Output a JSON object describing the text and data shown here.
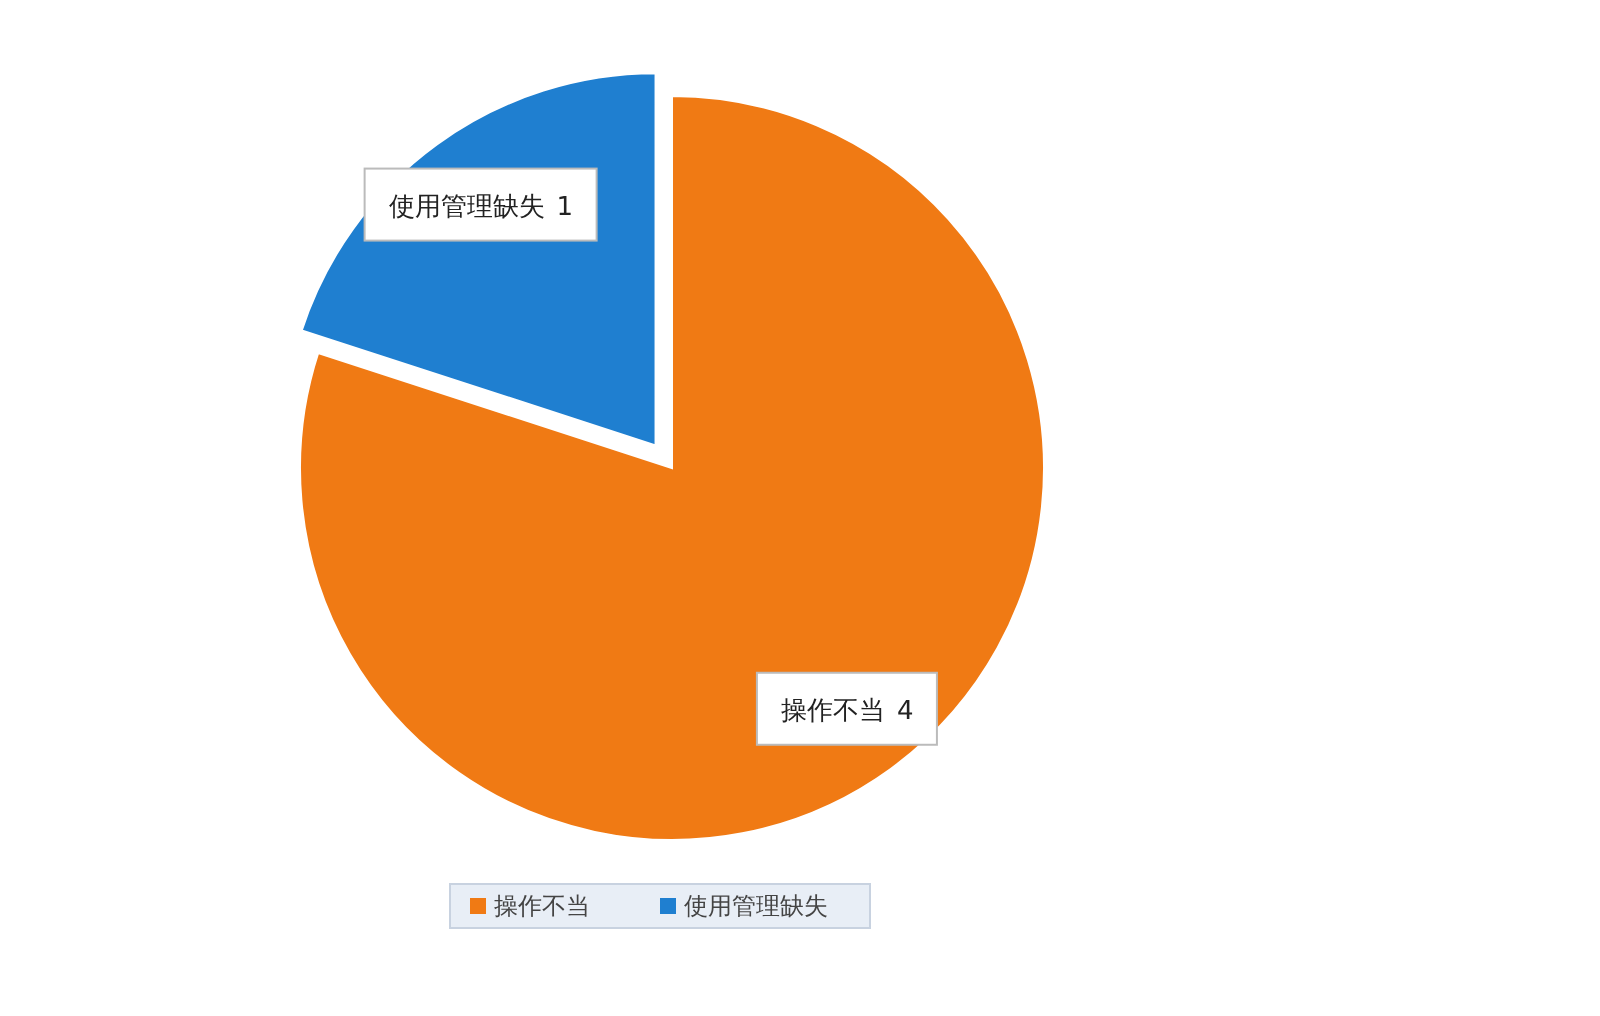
{
  "chart_data": {
    "type": "pie",
    "categories": [
      "操作不当",
      "使用管理缺失"
    ],
    "values": [
      4,
      1
    ],
    "colors": [
      "#f07a14",
      "#1f7fd0"
    ],
    "data_labels": true,
    "legend": "bottom"
  }
}
